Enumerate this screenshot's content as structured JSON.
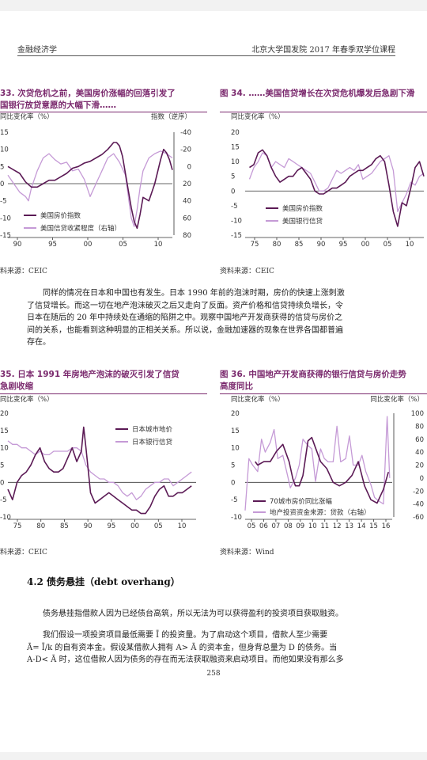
{
  "header": {
    "left": "金融经济学",
    "right": "北京大学国发院 2017 年春季双学位课程"
  },
  "figures": [
    {
      "title_lines": [
        "33. 次贷危机之前，美国房价涨幅的回落引发了",
        "国银行放贷意愿的大幅下滑……"
      ],
      "source": "料来源：CEIC"
    },
    {
      "title_lines": [
        "图 34. ……美国信贷增长在次贷危机爆发后急剧下滑"
      ],
      "source": "资料来源：CEIC"
    },
    {
      "title_lines": [
        "35. 日本 1991 年房地产泡沫的破灭引发了信贷",
        "急剧收缩"
      ],
      "source": "料来源：CEIC"
    },
    {
      "title_lines": [
        "图 36. 中国地产开发商获得的银行信贷与房价走势",
        "高度同比"
      ],
      "source": "资料来源：Wind"
    }
  ],
  "paragraph1": [
    "同样的情况在日本和中国也有发生。日本 1990 年前的泡沫时期，房价的快速上涨刺激",
    "了信贷增长。而这一切在地产泡沫破灭之后又走向了反面。资产价格和信贷持续负增长，令",
    "日本在随后的 20 年中持续处在通缩的陷阱之中。观察中国地产开发商获得的信贷与房价之",
    "间的关系，也能看到这种明显的正相关关系。所以说，金融加速器的现象在世界各国都普遍",
    "存在。"
  ],
  "section_title": "4.2 债务悬挂（debt overhang）",
  "paragraph2": [
    "债务悬挂指借款人因为已经债台高筑，所以无法为可以获得盈利的投资项目获取融资。"
  ],
  "paragraph3": [
    "我们假设一项投资项目最低需要 Ī 的投资量。为了启动这个项目，借款人至少需要",
    "Ā= Ī/k 的自有资本金。假设某借款人拥有 A> Ā 的资本金，但身背总量为 D 的债务。当",
    "A-D< Ā 时，这位借款人因为债务的存在而无法获取融资来启动项目。而他如果没有那么多"
  ],
  "page_number": "258",
  "colors": {
    "dark": "#5b1a55",
    "light": "#c59ad6",
    "title": "#7b2a6e"
  },
  "chart_data": [
    {
      "type": "line",
      "title": "33. 次贷危机之前，美国房价涨幅的回落引发了国银行放贷意愿的大幅下滑……",
      "ylabel": "同比变化率（%）",
      "ylabel_right": "指数（逆序）",
      "x_ticks": [
        "90",
        "95",
        "00",
        "05",
        "10"
      ],
      "y_ticks": [
        "15",
        "10",
        "5",
        "0",
        "-5",
        "-10",
        "-15"
      ],
      "y2_ticks": [
        "-40",
        "-20",
        "0",
        "20",
        "40",
        "60",
        "80"
      ],
      "xlim": [
        1987,
        2015
      ],
      "ylim": [
        -15,
        15
      ],
      "y2lim": [
        80,
        -40
      ],
      "y2_reversed": true,
      "series": [
        {
          "name": "美国房价指数",
          "axis": "left",
          "color": "#5b1a55",
          "x": [
            1987,
            1988,
            1989,
            1990,
            1991,
            1992,
            1993,
            1994,
            1995,
            1996,
            1997,
            1998,
            1999,
            2000,
            2001,
            2002,
            2003,
            2004,
            2005,
            2005.5,
            2006,
            2006.5,
            2007,
            2007.5,
            2008,
            2008.5,
            2009,
            2009.5,
            2010,
            2011,
            2012,
            2013,
            2013.5,
            2014,
            2014.5,
            2015
          ],
          "y": [
            5,
            4,
            3,
            0.5,
            -1,
            -1,
            0,
            1,
            1,
            2,
            3,
            4.5,
            5,
            6,
            6.5,
            7.5,
            8.5,
            10,
            12,
            12,
            11,
            8,
            3,
            -2,
            -7,
            -11,
            -13,
            -9,
            -4,
            -5,
            0,
            7,
            10,
            9,
            7,
            4
          ]
        },
        {
          "name": "美国信贷收紧程度（右轴）",
          "axis": "right",
          "color": "#c59ad6",
          "x": [
            1987,
            1988,
            1989,
            1990,
            1990.5,
            1991,
            1992,
            1993,
            1994,
            1995,
            1996,
            1997,
            1998,
            1999,
            2000,
            2001,
            2002,
            2003,
            2004,
            2005,
            2006,
            2007,
            2007.5,
            2008,
            2008.5,
            2009,
            2009.5,
            2010,
            2011,
            2012,
            2013,
            2014,
            2015
          ],
          "y": [
            10,
            20,
            30,
            35,
            40,
            25,
            5,
            -10,
            -15,
            -8,
            -3,
            -5,
            5,
            3,
            15,
            35,
            20,
            5,
            -10,
            -15,
            -5,
            10,
            35,
            60,
            70,
            50,
            25,
            5,
            -10,
            -15,
            -18,
            -15,
            -10
          ]
        }
      ],
      "legend": "bottom-left"
    },
    {
      "type": "line",
      "title": "图 34. ……美国信贷增长在次贷危机爆发后急剧下滑",
      "ylabel": "同比变化率（%）",
      "x_ticks": [
        "75",
        "80",
        "85",
        "90",
        "95",
        "00",
        "05",
        "10"
      ],
      "y_ticks": [
        "20",
        "15",
        "10",
        "5",
        "0",
        "-5",
        "-10",
        "-15"
      ],
      "xlim": [
        1974,
        2015
      ],
      "ylim": [
        -15,
        20
      ],
      "series": [
        {
          "name": "美国房价指数",
          "color": "#5b1a55",
          "x": [
            1975,
            1976,
            1977,
            1978,
            1979,
            1980,
            1981,
            1982,
            1983,
            1984,
            1985,
            1986,
            1987,
            1988,
            1989,
            1990,
            1991,
            1992,
            1993,
            1994,
            1995,
            1996,
            1997,
            1998,
            1999,
            2000,
            2001,
            2002,
            2003,
            2004,
            2005,
            2006,
            2007,
            2008,
            2009,
            2010,
            2011,
            2012,
            2013,
            2014,
            2015
          ],
          "y": [
            8,
            9,
            13,
            14,
            12,
            8,
            5,
            3,
            4,
            5,
            5,
            7,
            8,
            6,
            4,
            0,
            -1,
            -1,
            0,
            1,
            1,
            2,
            3,
            5,
            6,
            7,
            7,
            8,
            9,
            11,
            12,
            10,
            2,
            -7,
            -12,
            -4,
            -5,
            1,
            8,
            10,
            5
          ]
        },
        {
          "name": "美国银行信贷",
          "color": "#c59ad6",
          "x": [
            1975,
            1976,
            1977,
            1978,
            1979,
            1980,
            1981,
            1982,
            1983,
            1984,
            1985,
            1986,
            1987,
            1988,
            1989,
            1990,
            1991,
            1992,
            1993,
            1994,
            1995,
            1996,
            1997,
            1998,
            1999,
            2000,
            2001,
            2002,
            2003,
            2004,
            2005,
            2006,
            2007,
            2008,
            2009,
            2010,
            2011,
            2012,
            2013,
            2014,
            2015
          ],
          "y": [
            4,
            8,
            10,
            13,
            12,
            8,
            10,
            9,
            8,
            11,
            10,
            9,
            8,
            7,
            6,
            3,
            0,
            0,
            1,
            4,
            7,
            6,
            7,
            8,
            7,
            9,
            4,
            5,
            6,
            8,
            10,
            11,
            12,
            7,
            -7,
            -4,
            -1,
            3,
            2,
            5,
            6
          ]
        }
      ],
      "legend": "bottom-right"
    },
    {
      "type": "line",
      "title": "35. 日本 1991 年房地产泡沫的破灭引发了信贷急剧收缩",
      "ylabel": "同比变化率（%）",
      "x_ticks": [
        "75",
        "80",
        "85",
        "90",
        "95",
        "00",
        "05",
        "10"
      ],
      "y_ticks": [
        "20",
        "15",
        "10",
        "5",
        "0",
        "-5",
        "-10"
      ],
      "xlim": [
        1974,
        2015
      ],
      "ylim": [
        -10,
        20
      ],
      "series": [
        {
          "name": "日本城市地价",
          "color": "#5b1a55",
          "x": [
            1974,
            1975,
            1976,
            1977,
            1978,
            1979,
            1980,
            1981,
            1982,
            1983,
            1984,
            1985,
            1986,
            1987,
            1988,
            1989,
            1990,
            1990.5,
            1991,
            1992,
            1993,
            1994,
            1995,
            1996,
            1997,
            1998,
            1999,
            2000,
            2001,
            2002,
            2003,
            2004,
            2005,
            2006,
            2007,
            2008,
            2009,
            2010,
            2011,
            2012,
            2013,
            2014
          ],
          "y": [
            -2,
            -5,
            0,
            2,
            3,
            5,
            8,
            10,
            6,
            4,
            3,
            3,
            4,
            7,
            10,
            6,
            9,
            16,
            10,
            -3,
            -6,
            -5,
            -4,
            -3,
            -4,
            -5,
            -6,
            -7,
            -8,
            -8,
            -9,
            -9,
            -7,
            -4,
            -2,
            -1,
            -4,
            -4,
            -3,
            -3,
            -2,
            -1
          ]
        },
        {
          "name": "日本银行信贷",
          "color": "#c59ad6",
          "x": [
            1974,
            1975,
            1976,
            1977,
            1978,
            1979,
            1980,
            1981,
            1982,
            1983,
            1984,
            1985,
            1986,
            1987,
            1988,
            1989,
            1990,
            1991,
            1992,
            1993,
            1994,
            1995,
            1996,
            1997,
            1998,
            1999,
            2000,
            2001,
            2002,
            2003,
            2004,
            2005,
            2006,
            2007,
            2008,
            2009,
            2010,
            2011,
            2012,
            2013,
            2014
          ],
          "y": [
            12,
            11,
            11,
            10,
            10,
            9,
            8,
            9,
            8,
            8,
            9,
            9,
            9,
            9,
            10,
            10,
            9,
            5,
            3,
            2,
            1,
            1,
            0,
            0,
            -1,
            -3,
            -4,
            -3,
            -5,
            -4,
            -2,
            -1,
            0,
            0,
            1,
            1,
            -1,
            0,
            1,
            2,
            3
          ]
        }
      ],
      "legend": "top-right"
    },
    {
      "type": "line",
      "title": "图 36. 中国地产开发商获得的银行信贷与房价走势高度同比",
      "ylabel": "同比变化率（%）",
      "ylabel_right": "同比变化率（%）",
      "x_ticks": [
        "05",
        "06",
        "07",
        "08",
        "09",
        "10",
        "11",
        "12",
        "13",
        "14",
        "15",
        "16"
      ],
      "y_ticks": [
        "20",
        "15",
        "10",
        "5",
        "0",
        "-5",
        "-10"
      ],
      "y2_ticks": [
        "100",
        "80",
        "60",
        "40",
        "20",
        "0",
        "-20",
        "-40",
        "-60"
      ],
      "xlim": [
        2005,
        2016.7
      ],
      "ylim": [
        -10,
        20
      ],
      "y2lim": [
        -60,
        100
      ],
      "series": [
        {
          "name": "70城市房价同比涨幅",
          "axis": "left",
          "color": "#5b1a55",
          "x": [
            2005.8,
            2006,
            2006.5,
            2007,
            2007.5,
            2008,
            2008.5,
            2008.8,
            2009,
            2009.3,
            2009.6,
            2010,
            2010.3,
            2010.6,
            2011,
            2011.5,
            2012,
            2012.5,
            2013,
            2013.5,
            2014,
            2014.5,
            2015,
            2015.5,
            2016,
            2016.4
          ],
          "y": [
            6,
            5,
            6,
            6,
            9,
            11,
            6,
            1,
            -1,
            -1,
            2,
            12,
            13,
            10,
            6,
            4,
            0,
            -1,
            0,
            2,
            6,
            -1,
            -5,
            -6,
            -2,
            3
          ]
        },
        {
          "name": "地产投资资金来源：贷款（右轴）",
          "axis": "right",
          "color": "#c59ad6",
          "x": [
            2005,
            2005.3,
            2005.6,
            2006,
            2006.3,
            2006.6,
            2007,
            2007.3,
            2007.6,
            2008,
            2008.3,
            2008.6,
            2009,
            2009.3,
            2009.6,
            2010,
            2010.3,
            2010.6,
            2011,
            2011.3,
            2011.6,
            2012,
            2012.3,
            2012.6,
            2013,
            2013.3,
            2013.6,
            2014,
            2014.3,
            2014.6,
            2015,
            2015.3,
            2015.6,
            2016,
            2016.3,
            2016.5
          ],
          "y": [
            -50,
            30,
            20,
            10,
            60,
            40,
            55,
            75,
            30,
            35,
            10,
            -15,
            0,
            20,
            60,
            50,
            45,
            -5,
            45,
            30,
            25,
            25,
            80,
            25,
            30,
            65,
            20,
            20,
            35,
            10,
            -10,
            -30,
            -35,
            -40,
            95,
            0
          ]
        }
      ],
      "legend": "bottom-left"
    }
  ]
}
